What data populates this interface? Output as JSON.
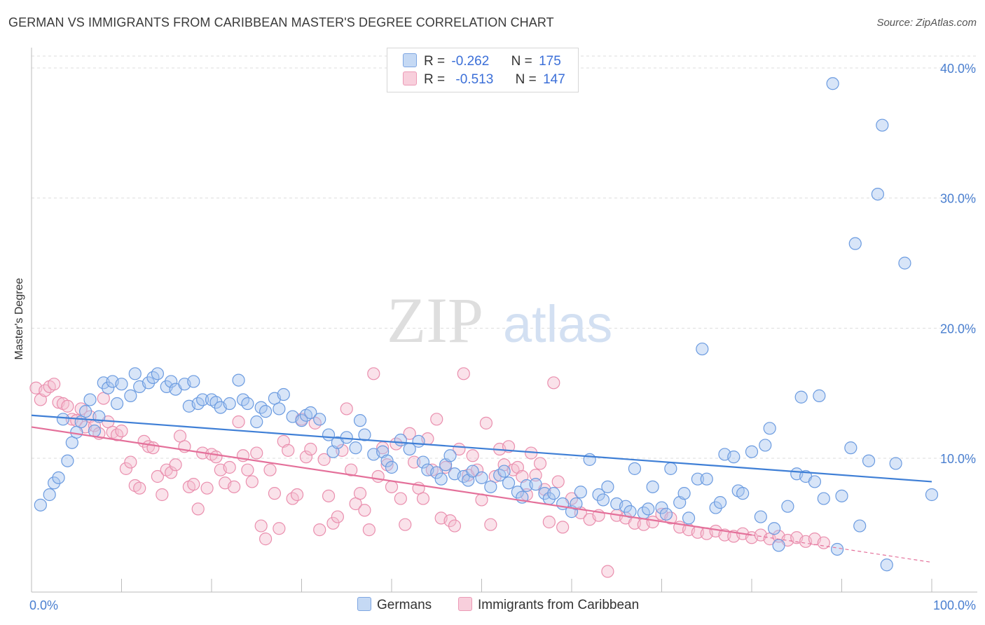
{
  "header": {
    "title": "GERMAN VS IMMIGRANTS FROM CARIBBEAN MASTER'S DEGREE CORRELATION CHART",
    "source": "Source: ZipAtlas.com"
  },
  "watermark": {
    "zip": "ZIP",
    "atlas": "atlas"
  },
  "legend": {
    "r_label": "R =",
    "n_label": "N =",
    "series": [
      {
        "r": "-0.262",
        "n": "175"
      },
      {
        "r": "-0.513",
        "n": "147"
      }
    ]
  },
  "bottom_legend": [
    "Germans",
    "Immigrants from Caribbean"
  ],
  "colors": {
    "blue_fill": "#a9c6ef",
    "blue_stroke": "#6b9be0",
    "blue_line": "#3f7fd6",
    "pink_fill": "#f5bfd0",
    "pink_stroke": "#ea8fae",
    "pink_line": "#e4709a",
    "tick_text": "#4a7fd0",
    "grid": "#dddddd"
  },
  "chart_data": {
    "type": "scatter",
    "title": "GERMAN VS IMMIGRANTS FROM CARIBBEAN MASTER'S DEGREE CORRELATION CHART",
    "xlabel": "",
    "ylabel": "Master's Degree",
    "xlim": [
      0,
      100
    ],
    "ylim": [
      0,
      40
    ],
    "x_tick_labels": [
      "0.0%",
      "100.0%"
    ],
    "y_ticks": [
      10,
      20,
      30,
      40
    ],
    "y_tick_labels": [
      "10.0%",
      "20.0%",
      "30.0%",
      "40.0%"
    ],
    "grid": true,
    "legend_position": "top-center",
    "series": [
      {
        "name": "Germans",
        "color": "#6b9be0",
        "trend": {
          "x": [
            0,
            100
          ],
          "y": [
            13.3,
            8.2
          ]
        },
        "points": [
          [
            1,
            6.4
          ],
          [
            2,
            7.2
          ],
          [
            2.5,
            8.1
          ],
          [
            3,
            8.5
          ],
          [
            3.5,
            13
          ],
          [
            4,
            9.8
          ],
          [
            4.5,
            11.2
          ],
          [
            5,
            12
          ],
          [
            5.5,
            12.8
          ],
          [
            6,
            13.6
          ],
          [
            6.5,
            14.5
          ],
          [
            7,
            12.1
          ],
          [
            7.5,
            13.2
          ],
          [
            8,
            15.8
          ],
          [
            8.5,
            15.4
          ],
          [
            9,
            15.9
          ],
          [
            9.5,
            14.2
          ],
          [
            10,
            15.7
          ],
          [
            11,
            14.8
          ],
          [
            11.5,
            16.5
          ],
          [
            12,
            15.5
          ],
          [
            13,
            15.8
          ],
          [
            13.5,
            16.2
          ],
          [
            14,
            16.5
          ],
          [
            15,
            15.5
          ],
          [
            15.5,
            15.9
          ],
          [
            16,
            15.3
          ],
          [
            17,
            15.7
          ],
          [
            17.5,
            14
          ],
          [
            18,
            15.9
          ],
          [
            18.5,
            14.2
          ],
          [
            19,
            14.5
          ],
          [
            20,
            14.5
          ],
          [
            20.5,
            14.3
          ],
          [
            21,
            13.9
          ],
          [
            22,
            14.2
          ],
          [
            23,
            16
          ],
          [
            23.5,
            14.5
          ],
          [
            24,
            14.2
          ],
          [
            25,
            12.8
          ],
          [
            25.5,
            13.9
          ],
          [
            26,
            13.6
          ],
          [
            27,
            14.6
          ],
          [
            27.5,
            13.8
          ],
          [
            28,
            14.9
          ],
          [
            29,
            13.2
          ],
          [
            30,
            12.9
          ],
          [
            30.5,
            13.3
          ],
          [
            31,
            13.5
          ],
          [
            32,
            13
          ],
          [
            33,
            11.8
          ],
          [
            33.5,
            10.5
          ],
          [
            34,
            11.2
          ],
          [
            35,
            11.6
          ],
          [
            36,
            10.8
          ],
          [
            36.5,
            12.9
          ],
          [
            37,
            11.8
          ],
          [
            38,
            10.3
          ],
          [
            39,
            10.5
          ],
          [
            39.5,
            9.8
          ],
          [
            40,
            9.3
          ],
          [
            41,
            11.4
          ],
          [
            42,
            10.7
          ],
          [
            43,
            11.3
          ],
          [
            43.5,
            9.7
          ],
          [
            44,
            9.1
          ],
          [
            45,
            8.9
          ],
          [
            45.5,
            8.4
          ],
          [
            46,
            9.5
          ],
          [
            46.5,
            10.2
          ],
          [
            47,
            8.8
          ],
          [
            48,
            8.6
          ],
          [
            48.5,
            8.3
          ],
          [
            49,
            9
          ],
          [
            50,
            8.5
          ],
          [
            51,
            7.8
          ],
          [
            52,
            8.7
          ],
          [
            52.5,
            9
          ],
          [
            53,
            8.1
          ],
          [
            54,
            7.4
          ],
          [
            54.5,
            7
          ],
          [
            55,
            7.9
          ],
          [
            56,
            8
          ],
          [
            57,
            7.3
          ],
          [
            57.5,
            6.9
          ],
          [
            58,
            7.3
          ],
          [
            59,
            6.5
          ],
          [
            60,
            5.9
          ],
          [
            60.5,
            6.5
          ],
          [
            61,
            7.4
          ],
          [
            62,
            9.9
          ],
          [
            63,
            7.2
          ],
          [
            63.5,
            6.8
          ],
          [
            64,
            7.8
          ],
          [
            65,
            6.5
          ],
          [
            66,
            6.3
          ],
          [
            66.5,
            5.9
          ],
          [
            67,
            9.2
          ],
          [
            68,
            5.8
          ],
          [
            68.5,
            6.1
          ],
          [
            69,
            7.8
          ],
          [
            70,
            6.2
          ],
          [
            70.5,
            5.7
          ],
          [
            71,
            9.2
          ],
          [
            72,
            6.6
          ],
          [
            72.5,
            7.3
          ],
          [
            73,
            5.4
          ],
          [
            74,
            8.4
          ],
          [
            74.5,
            18.4
          ],
          [
            75,
            8.4
          ],
          [
            76,
            6.2
          ],
          [
            76.5,
            6.6
          ],
          [
            77,
            10.3
          ],
          [
            78,
            10.1
          ],
          [
            78.5,
            7.5
          ],
          [
            79,
            7.3
          ],
          [
            80,
            10.5
          ],
          [
            81,
            5.5
          ],
          [
            81.5,
            11
          ],
          [
            82,
            12.3
          ],
          [
            82.5,
            4.6
          ],
          [
            83,
            3.3
          ],
          [
            84,
            6.3
          ],
          [
            85,
            8.8
          ],
          [
            85.5,
            14.7
          ],
          [
            86,
            8.6
          ],
          [
            87,
            8.2
          ],
          [
            87.5,
            14.8
          ],
          [
            88,
            6.9
          ],
          [
            89,
            38.8
          ],
          [
            89.5,
            3
          ],
          [
            90,
            7.1
          ],
          [
            91,
            10.8
          ],
          [
            91.5,
            26.5
          ],
          [
            92,
            4.8
          ],
          [
            93,
            9.8
          ],
          [
            94,
            30.3
          ],
          [
            94.5,
            35.6
          ],
          [
            95,
            1.8
          ],
          [
            96,
            9.6
          ],
          [
            97,
            25
          ],
          [
            100,
            7.2
          ]
        ]
      },
      {
        "name": "Immigrants from Caribbean",
        "color": "#ea8fae",
        "trend": {
          "x": [
            0,
            80
          ],
          "y": [
            12.4,
            4.1
          ]
        },
        "trend_dashed": {
          "x": [
            80,
            100
          ],
          "y": [
            4.1,
            2.0
          ]
        },
        "points": [
          [
            0.5,
            15.4
          ],
          [
            1,
            14.5
          ],
          [
            1.5,
            15.2
          ],
          [
            2,
            15.5
          ],
          [
            2.5,
            15.7
          ],
          [
            3,
            14.3
          ],
          [
            3.5,
            14.2
          ],
          [
            4,
            14
          ],
          [
            4.5,
            13
          ],
          [
            5,
            12.9
          ],
          [
            5.5,
            13.8
          ],
          [
            6,
            12.4
          ],
          [
            6.5,
            13.2
          ],
          [
            7,
            12.5
          ],
          [
            7.5,
            11.9
          ],
          [
            8,
            14.6
          ],
          [
            8.5,
            12.8
          ],
          [
            9,
            12
          ],
          [
            9.5,
            11.8
          ],
          [
            10,
            12.1
          ],
          [
            10.5,
            9.2
          ],
          [
            11,
            9.7
          ],
          [
            11.5,
            7.9
          ],
          [
            12,
            7.7
          ],
          [
            12.5,
            11.3
          ],
          [
            13,
            10.9
          ],
          [
            13.5,
            10.8
          ],
          [
            14,
            8.6
          ],
          [
            14.5,
            7.2
          ],
          [
            15,
            9.1
          ],
          [
            15.5,
            8.9
          ],
          [
            16,
            9.5
          ],
          [
            16.5,
            11.7
          ],
          [
            17,
            10.9
          ],
          [
            17.5,
            7.8
          ],
          [
            18,
            8
          ],
          [
            18.5,
            6.1
          ],
          [
            19,
            10.4
          ],
          [
            19.5,
            7.7
          ],
          [
            20,
            10.3
          ],
          [
            20.5,
            10.1
          ],
          [
            21,
            9.1
          ],
          [
            21.5,
            8.1
          ],
          [
            22,
            9.3
          ],
          [
            22.5,
            7.8
          ],
          [
            23,
            12.8
          ],
          [
            23.5,
            10.2
          ],
          [
            24,
            9.1
          ],
          [
            24.5,
            8.2
          ],
          [
            25,
            10.4
          ],
          [
            25.5,
            4.8
          ],
          [
            26,
            3.8
          ],
          [
            26.5,
            9.1
          ],
          [
            27,
            7.3
          ],
          [
            27.5,
            4.6
          ],
          [
            28,
            11.3
          ],
          [
            28.5,
            10.6
          ],
          [
            29,
            6.9
          ],
          [
            29.5,
            7.2
          ],
          [
            30,
            13
          ],
          [
            30.5,
            10.1
          ],
          [
            31,
            10.7
          ],
          [
            31.5,
            12.7
          ],
          [
            32,
            4.5
          ],
          [
            32.5,
            9.9
          ],
          [
            33,
            7.1
          ],
          [
            33.5,
            5
          ],
          [
            34,
            5.5
          ],
          [
            34.5,
            10.6
          ],
          [
            35,
            13.8
          ],
          [
            35.5,
            9.1
          ],
          [
            36,
            6.5
          ],
          [
            36.5,
            7.3
          ],
          [
            37,
            6
          ],
          [
            37.5,
            4.5
          ],
          [
            38,
            16.5
          ],
          [
            38.5,
            8.6
          ],
          [
            39,
            10.8
          ],
          [
            39.5,
            9.5
          ],
          [
            40,
            7.8
          ],
          [
            40.5,
            11.1
          ],
          [
            41,
            6.9
          ],
          [
            41.5,
            4.9
          ],
          [
            42,
            11.9
          ],
          [
            42.5,
            9.7
          ],
          [
            43,
            7.7
          ],
          [
            43.5,
            6.9
          ],
          [
            44,
            11.5
          ],
          [
            44.5,
            9.1
          ],
          [
            45,
            13
          ],
          [
            45.5,
            5.4
          ],
          [
            46,
            9.3
          ],
          [
            46.5,
            5.2
          ],
          [
            47,
            4.8
          ],
          [
            47.5,
            10.7
          ],
          [
            48,
            16.5
          ],
          [
            48.5,
            8.7
          ],
          [
            49,
            10.2
          ],
          [
            49.5,
            9.1
          ],
          [
            50,
            6.8
          ],
          [
            50.5,
            12.7
          ],
          [
            51,
            4.9
          ],
          [
            51.5,
            8.6
          ],
          [
            52,
            10.7
          ],
          [
            52.5,
            9.5
          ],
          [
            53,
            10.9
          ],
          [
            53.5,
            9.1
          ],
          [
            54,
            9.3
          ],
          [
            54.5,
            8.6
          ],
          [
            55,
            7.2
          ],
          [
            55.5,
            10.4
          ],
          [
            56,
            8.7
          ],
          [
            56.5,
            9.6
          ],
          [
            57,
            7.6
          ],
          [
            57.5,
            5.1
          ],
          [
            58,
            15.8
          ],
          [
            58.5,
            8.2
          ],
          [
            59,
            4.7
          ],
          [
            60,
            6.9
          ],
          [
            61,
            5.8
          ],
          [
            62,
            5.3
          ],
          [
            63,
            5.6
          ],
          [
            64,
            1.3
          ],
          [
            65,
            5.6
          ],
          [
            66,
            5.4
          ],
          [
            67,
            5
          ],
          [
            68,
            4.9
          ],
          [
            69,
            5.1
          ],
          [
            70,
            5.7
          ],
          [
            71,
            5.4
          ],
          [
            72,
            4.7
          ],
          [
            73,
            4.5
          ],
          [
            74,
            4.3
          ],
          [
            75,
            4.2
          ],
          [
            76,
            4.4
          ],
          [
            77,
            4.1
          ],
          [
            78,
            4
          ],
          [
            79,
            4.2
          ],
          [
            80,
            3.9
          ],
          [
            81,
            4.1
          ],
          [
            82,
            3.8
          ],
          [
            83,
            4
          ],
          [
            84,
            3.7
          ],
          [
            85,
            3.9
          ],
          [
            86,
            3.6
          ],
          [
            87,
            3.8
          ],
          [
            88,
            3.5
          ]
        ]
      }
    ]
  }
}
